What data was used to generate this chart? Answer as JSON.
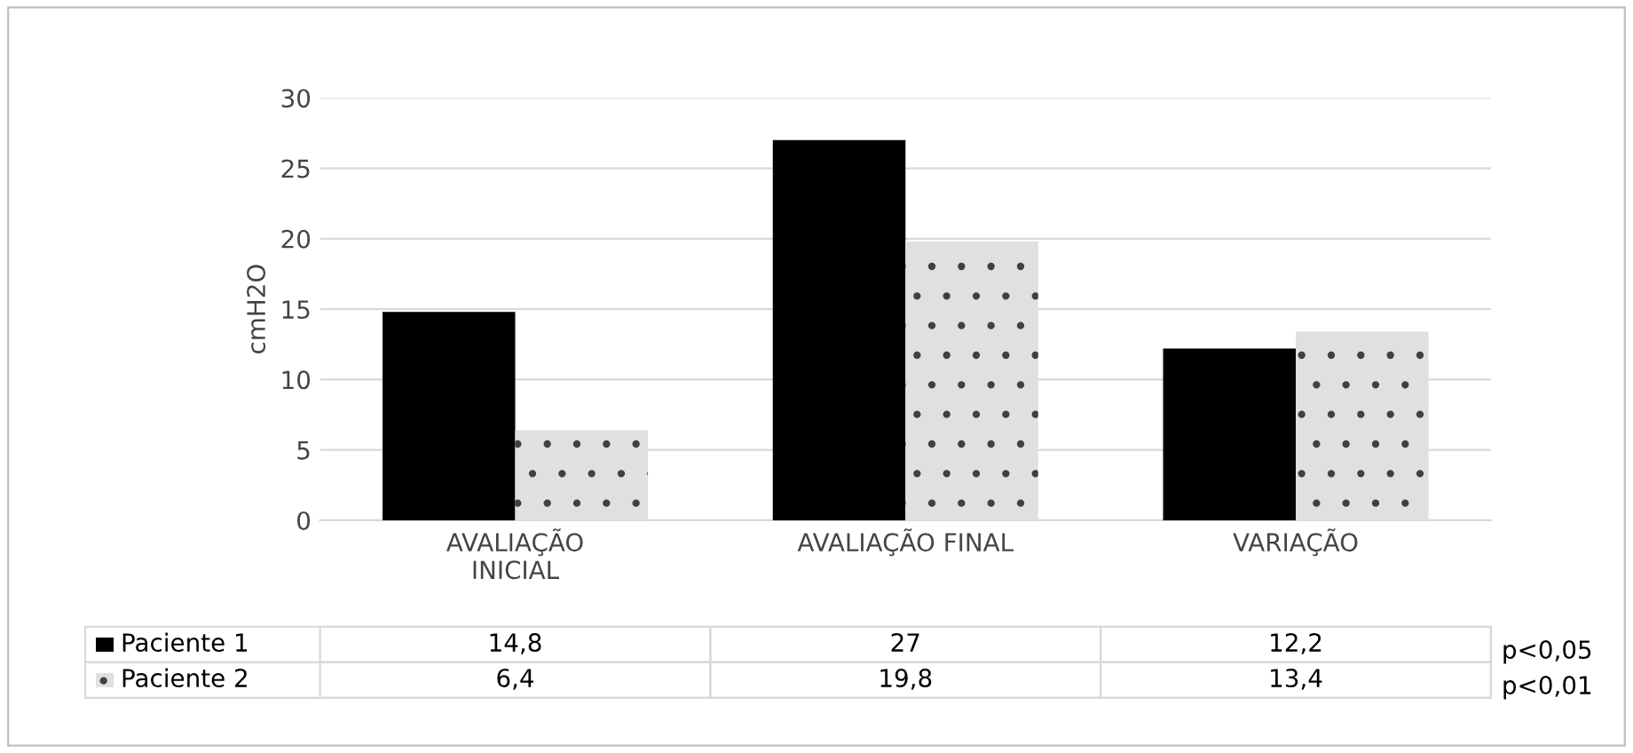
{
  "chart_data": {
    "type": "bar",
    "ylabel": "cmH2O",
    "categories": [
      "AVALIAÇÃO\nINICIAL",
      "AVALIAÇÃO FINAL",
      "VARIAÇÃO"
    ],
    "series": [
      {
        "name": "Paciente 1",
        "color": "#000000",
        "values": [
          14.8,
          27,
          12.2
        ],
        "value_labels": [
          "14,8",
          "27",
          "12,2"
        ]
      },
      {
        "name": "Paciente 2",
        "color": "#e0e0e0",
        "values": [
          6.4,
          19.8,
          13.4
        ],
        "value_labels": [
          "6,4",
          "19,8",
          "13,4"
        ]
      }
    ],
    "ylim": [
      0,
      30
    ],
    "yticks": [
      0,
      5,
      10,
      15,
      20,
      25,
      30
    ],
    "grid": "y",
    "legend": "bottom",
    "annotations": [
      "p<0,05",
      "p<0,01"
    ]
  }
}
